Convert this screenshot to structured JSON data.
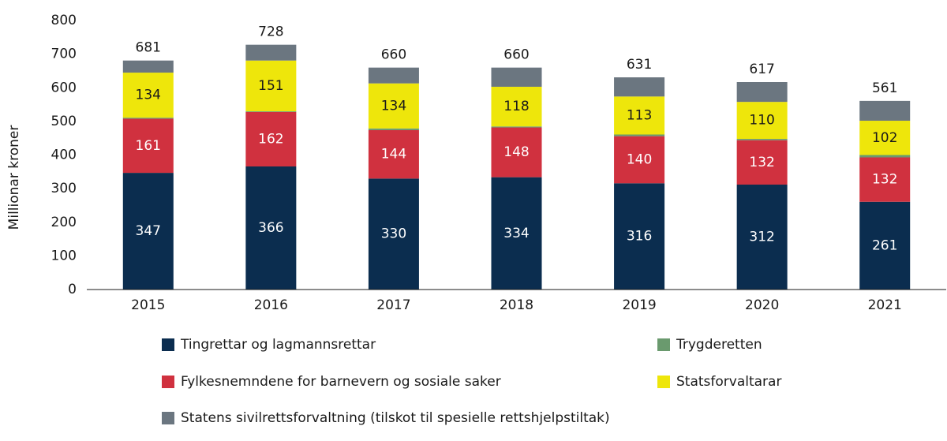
{
  "chart_data": {
    "type": "stacked_bar",
    "y_label": "Millionar kroner",
    "categories": [
      "2015",
      "2016",
      "2017",
      "2018",
      "2019",
      "2020",
      "2021"
    ],
    "series": [
      {
        "name": "Tingrettar og lagmannsrettar",
        "color": "#0b2d4f",
        "values": [
          347,
          366,
          330,
          334,
          316,
          312,
          261
        ],
        "show_labels": true
      },
      {
        "name": "Fylkesnemndene for barnevern og sosiale saker",
        "color": "#d0313f",
        "values": [
          161,
          162,
          144,
          148,
          140,
          132,
          132
        ],
        "show_labels": true
      },
      {
        "name": "Trygderetten",
        "color": "#6a9a6e",
        "values": [
          3,
          2,
          5,
          3,
          5,
          4,
          7
        ],
        "show_labels": false
      },
      {
        "name": "Statsforvaltarar",
        "color": "#eee60b",
        "values": [
          134,
          151,
          134,
          118,
          113,
          110,
          102
        ],
        "show_labels": true
      },
      {
        "name": "Statens sivilrettsforvaltning (tilskot til spesielle rettshjelpstiltak)",
        "color": "#6b7680",
        "values": [
          36,
          47,
          47,
          57,
          57,
          59,
          59
        ],
        "show_labels": false
      }
    ],
    "totals": [
      681,
      728,
      660,
      660,
      631,
      617,
      561
    ],
    "ylim": [
      0,
      800
    ],
    "yticks": [
      0,
      100,
      200,
      300,
      400,
      500,
      600,
      700,
      800
    ],
    "grid": false
  }
}
